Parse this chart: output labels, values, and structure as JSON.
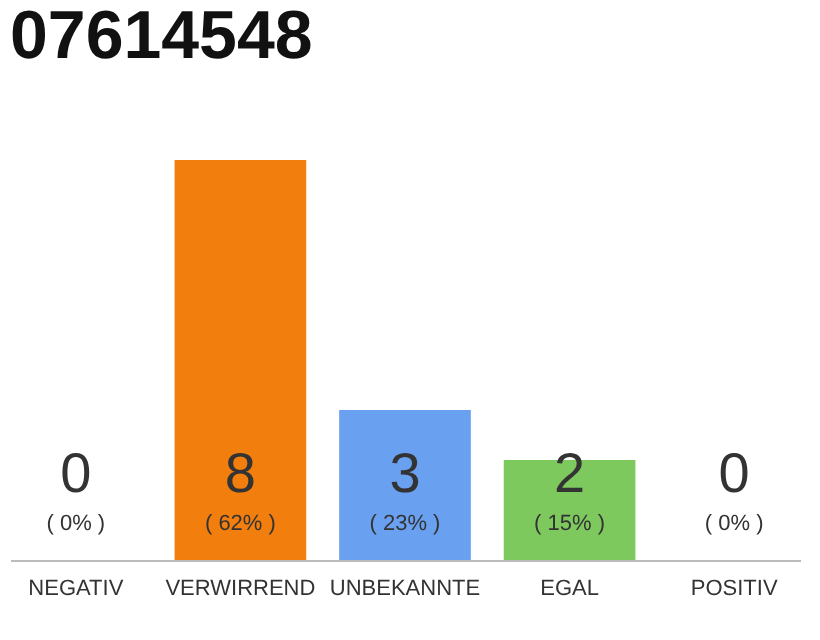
{
  "chart_data": {
    "type": "bar",
    "title": "07614548",
    "categories": [
      "NEGATIV",
      "VERWIRREND",
      "UNBEKANNTE",
      "EGAL",
      "POSITIV"
    ],
    "values": [
      0,
      8,
      3,
      2,
      0
    ],
    "colors": [
      "#cccccc",
      "#f27e0e",
      "#6aa0f0",
      "#7dc95e",
      "#cccccc"
    ],
    "value_labels": [
      "0",
      "8",
      "3",
      "2",
      "0"
    ],
    "annotations": [
      "( 0% )",
      "( 62% )",
      "( 23% )",
      "( 15% )",
      "( 0% )"
    ],
    "tick_labels": "x"
  }
}
